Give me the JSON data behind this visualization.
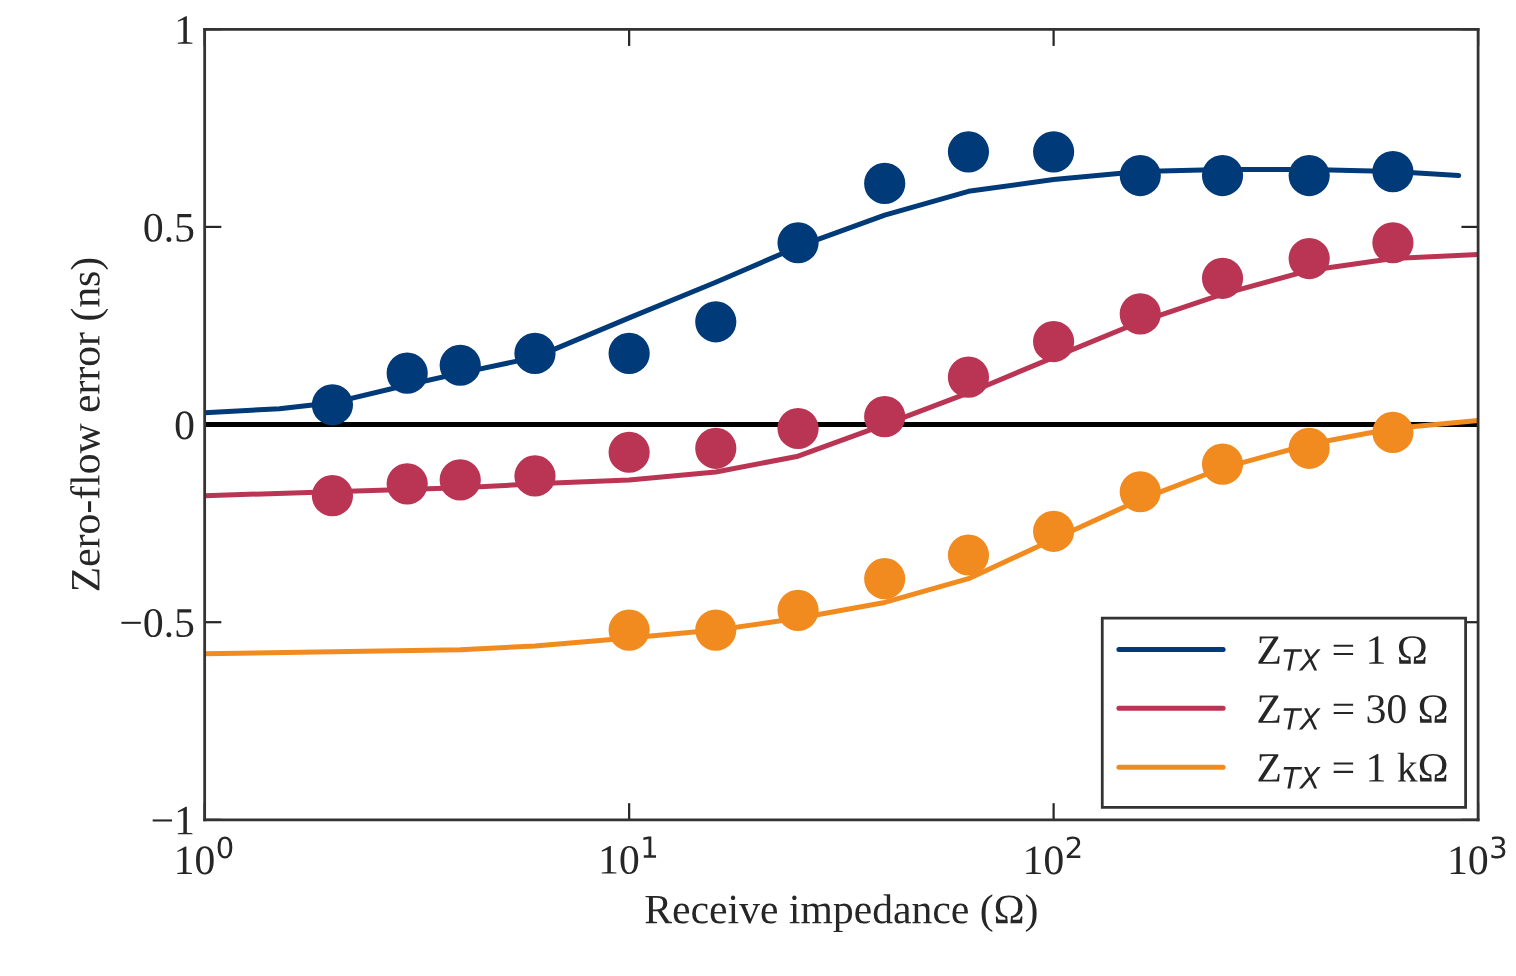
{
  "chart_data": {
    "type": "scatter",
    "xlabel": "Receive impedance (Ω)",
    "ylabel": "Zero-flow error (ns)",
    "log": "x",
    "xlim": [
      1,
      1000
    ],
    "xticks": [
      {
        "value": 1,
        "label": "10$^{0}$"
      },
      {
        "value": 10,
        "label": "10$^{1}$"
      },
      {
        "value": 100,
        "label": "10$^{2}$"
      },
      {
        "value": 1000,
        "label": "10$^{3}$"
      }
    ],
    "ylim": [
      -1,
      1
    ],
    "yticks": [
      {
        "value": -1,
        "label": "−1"
      },
      {
        "value": -0.5,
        "label": "−0.5"
      },
      0,
      0.5,
      1
    ],
    "grid": false,
    "legend": "bottom right",
    "ref_lines": [
      {
        "axis": "y",
        "value": 0,
        "color": "#000000"
      }
    ],
    "series": [
      {
        "name": "Z$_{TX}$ = 1 Ω",
        "type": "line",
        "color": "#003a78",
        "marker": "none",
        "x": [
          1,
          1.5,
          2,
          3,
          4,
          6,
          10,
          16,
          25,
          40,
          63,
          100,
          160,
          250,
          400,
          630,
          900
        ],
        "values": [
          0.03,
          0.04,
          0.055,
          0.1,
          0.13,
          0.17,
          0.27,
          0.36,
          0.45,
          0.53,
          0.59,
          0.62,
          0.64,
          0.645,
          0.645,
          0.64,
          0.63
        ]
      },
      {
        "name": "Z$_{TX}$ = 30 Ω",
        "type": "line",
        "color": "#b93553",
        "marker": "none",
        "x": [
          1,
          2,
          4,
          6,
          10,
          16,
          25,
          40,
          63,
          100,
          160,
          250,
          400,
          630,
          1000
        ],
        "values": [
          -0.18,
          -0.17,
          -0.16,
          -0.15,
          -0.14,
          -0.12,
          -0.08,
          0.0,
          0.08,
          0.17,
          0.26,
          0.33,
          0.39,
          0.42,
          0.43
        ]
      },
      {
        "name": "Z$_{TX}$ = 1 kΩ",
        "type": "line",
        "color": "#f18b20",
        "marker": "none",
        "x": [
          1,
          2,
          4,
          6,
          10,
          16,
          25,
          40,
          63,
          100,
          160,
          250,
          400,
          630,
          1000
        ],
        "values": [
          -0.58,
          -0.575,
          -0.57,
          -0.56,
          -0.54,
          -0.52,
          -0.49,
          -0.45,
          -0.39,
          -0.29,
          -0.19,
          -0.11,
          -0.05,
          -0.01,
          0.01
        ]
      },
      {
        "color": "#003a78",
        "marker": "circle",
        "x": [
          2,
          3,
          4,
          6,
          10,
          16,
          25,
          40,
          63,
          100,
          160,
          250,
          400,
          630
        ],
        "values": [
          0.05,
          0.13,
          0.15,
          0.18,
          0.18,
          0.26,
          0.46,
          0.61,
          0.69,
          0.69,
          0.63,
          0.63,
          0.63,
          0.64
        ]
      },
      {
        "color": "#b93553",
        "marker": "circle",
        "x": [
          2,
          3,
          4,
          6,
          10,
          16,
          25,
          40,
          63,
          100,
          160,
          250,
          400,
          630
        ],
        "values": [
          -0.18,
          -0.15,
          -0.14,
          -0.13,
          -0.07,
          -0.06,
          -0.01,
          0.02,
          0.12,
          0.21,
          0.28,
          0.37,
          0.42,
          0.46
        ]
      },
      {
        "color": "#f18b20",
        "marker": "circle",
        "x": [
          10,
          16,
          25,
          40,
          63,
          100,
          160,
          250,
          400,
          630
        ],
        "values": [
          -0.52,
          -0.52,
          -0.47,
          -0.39,
          -0.33,
          -0.27,
          -0.17,
          -0.1,
          -0.06,
          -0.02
        ]
      }
    ]
  }
}
